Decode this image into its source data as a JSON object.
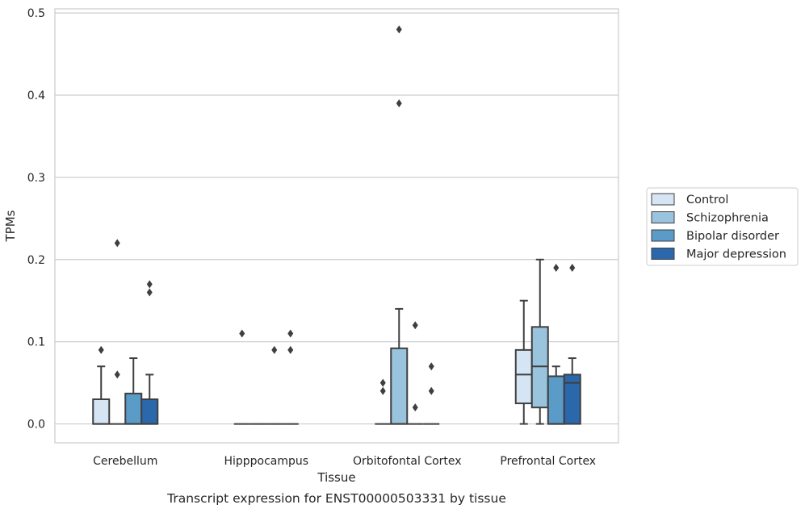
{
  "chart_data": {
    "type": "box",
    "xlabel": "Tissue",
    "ylabel": "TPMs",
    "caption": "Transcript expression for ENST00000503331 by tissue",
    "ylim": [
      -0.023,
      0.505
    ],
    "yticks": [
      0.0,
      0.1,
      0.2,
      0.3,
      0.4,
      0.5
    ],
    "ytick_labels": [
      "0.0",
      "0.1",
      "0.2",
      "0.3",
      "0.4",
      "0.5"
    ],
    "grid": "horizontal",
    "legend_position": "right",
    "categories": [
      "Cerebellum",
      "Hipppocampus",
      "Orbitofontal Cortex",
      "Prefrontal Cortex"
    ],
    "series": [
      {
        "name": "Control",
        "color": "#d6e5f4",
        "boxes": [
          {
            "q1": 0.0,
            "median": 0.0,
            "q3": 0.03,
            "whisker_low": 0.0,
            "whisker_high": 0.07,
            "outliers": [
              0.09
            ]
          },
          {
            "q1": 0.0,
            "median": 0.0,
            "q3": 0.0,
            "whisker_low": 0.0,
            "whisker_high": 0.0,
            "outliers": [
              0.11
            ]
          },
          {
            "q1": 0.0,
            "median": 0.0,
            "q3": 0.0,
            "whisker_low": 0.0,
            "whisker_high": 0.0,
            "outliers": [
              0.05,
              0.04
            ]
          },
          {
            "q1": 0.025,
            "median": 0.06,
            "q3": 0.09,
            "whisker_low": 0.0,
            "whisker_high": 0.15,
            "outliers": []
          }
        ]
      },
      {
        "name": "Schizophrenia",
        "color": "#9ac3de",
        "boxes": [
          {
            "q1": 0.0,
            "median": 0.0,
            "q3": 0.0,
            "whisker_low": 0.0,
            "whisker_high": 0.0,
            "outliers": [
              0.22,
              0.06
            ]
          },
          {
            "q1": 0.0,
            "median": 0.0,
            "q3": 0.0,
            "whisker_low": 0.0,
            "whisker_high": 0.0,
            "outliers": []
          },
          {
            "q1": 0.0,
            "median": 0.0,
            "q3": 0.092,
            "whisker_low": 0.0,
            "whisker_high": 0.14,
            "outliers": [
              0.48,
              0.39
            ]
          },
          {
            "q1": 0.02,
            "median": 0.07,
            "q3": 0.118,
            "whisker_low": 0.0,
            "whisker_high": 0.2,
            "outliers": []
          }
        ]
      },
      {
        "name": "Bipolar disorder",
        "color": "#5a9bc8",
        "boxes": [
          {
            "q1": 0.0,
            "median": 0.0,
            "q3": 0.037,
            "whisker_low": 0.0,
            "whisker_high": 0.08,
            "outliers": []
          },
          {
            "q1": 0.0,
            "median": 0.0,
            "q3": 0.0,
            "whisker_low": 0.0,
            "whisker_high": 0.0,
            "outliers": [
              0.09
            ]
          },
          {
            "q1": 0.0,
            "median": 0.0,
            "q3": 0.0,
            "whisker_low": 0.0,
            "whisker_high": 0.0,
            "outliers": [
              0.12,
              0.02
            ]
          },
          {
            "q1": 0.0,
            "median": 0.0,
            "q3": 0.058,
            "whisker_low": 0.0,
            "whisker_high": 0.07,
            "outliers": [
              0.19
            ]
          }
        ]
      },
      {
        "name": "Major depression",
        "color": "#2a68ab",
        "boxes": [
          {
            "q1": 0.0,
            "median": 0.0,
            "q3": 0.03,
            "whisker_low": 0.0,
            "whisker_high": 0.06,
            "outliers": [
              0.17,
              0.16
            ]
          },
          {
            "q1": 0.0,
            "median": 0.0,
            "q3": 0.0,
            "whisker_low": 0.0,
            "whisker_high": 0.0,
            "outliers": [
              0.11,
              0.09
            ]
          },
          {
            "q1": 0.0,
            "median": 0.0,
            "q3": 0.0,
            "whisker_low": 0.0,
            "whisker_high": 0.0,
            "outliers": [
              0.07,
              0.04
            ]
          },
          {
            "q1": 0.0,
            "median": 0.05,
            "q3": 0.06,
            "whisker_low": 0.0,
            "whisker_high": 0.08,
            "outliers": [
              0.19
            ]
          }
        ]
      }
    ]
  }
}
